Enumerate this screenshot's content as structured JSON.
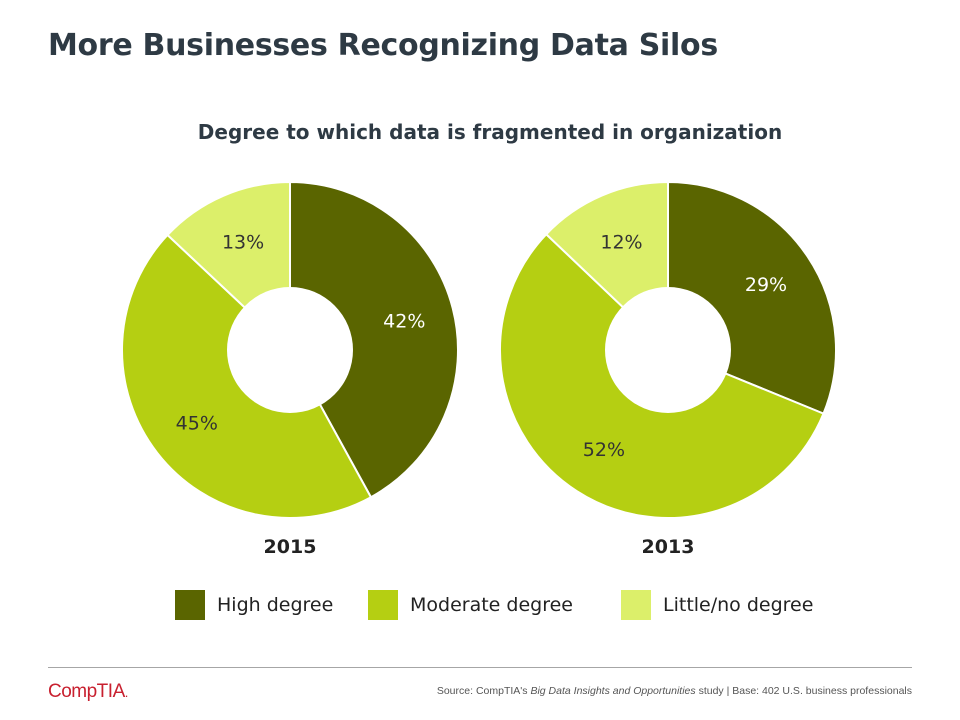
{
  "title": "More Businesses Recognizing Data Silos",
  "chart_data": {
    "type": "pie",
    "title": "Degree to which data is fragmented in organization",
    "categories": [
      "High degree",
      "Moderate degree",
      "Little/no degree"
    ],
    "colors": [
      "#5a6500",
      "#b5cf12",
      "#dcef6a"
    ],
    "charts": [
      {
        "label": "2015",
        "values": [
          42,
          45,
          13
        ],
        "value_labels": [
          "42%",
          "45%",
          "13%"
        ]
      },
      {
        "label": "2013",
        "values": [
          29,
          52,
          12
        ],
        "value_labels": [
          "29%",
          "52%",
          "12%"
        ]
      }
    ]
  },
  "legend": [
    {
      "label": "High degree",
      "color": "#5a6500"
    },
    {
      "label": "Moderate degree",
      "color": "#b5cf12"
    },
    {
      "label": "Little/no degree",
      "color": "#dcef6a"
    }
  ],
  "footer": {
    "logo_text": "CompTIA",
    "logo_dot": ".",
    "source_prefix": "Source: CompTIA's ",
    "source_italic": "Big Data Insights and Opportunities",
    "source_suffix": " study | Base: 402 U.S. business professionals"
  }
}
